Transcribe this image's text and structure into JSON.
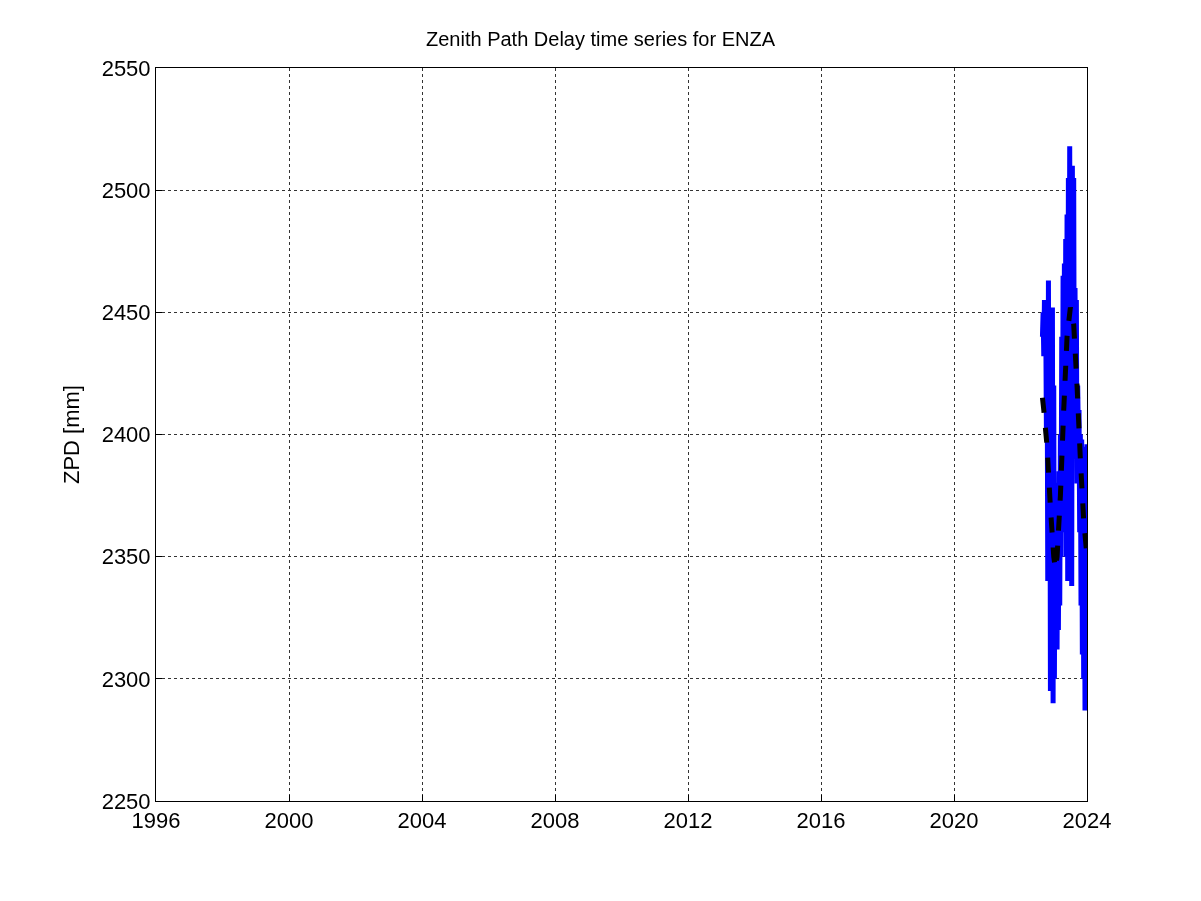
{
  "chart_data": {
    "type": "line",
    "title": "Zenith Path Delay time series for ENZA",
    "ylabel": "ZPD [mm]",
    "series": [
      {
        "color": "#0000ff",
        "line_style": "solid",
        "x": [
          2022.66,
          2022.68,
          2022.7,
          2022.72,
          2022.74,
          2022.76,
          2022.78,
          2022.8,
          2022.82,
          2022.84,
          2022.86,
          2022.88,
          2022.9,
          2022.92,
          2022.94,
          2022.96,
          2022.98,
          2023.0,
          2023.02,
          2023.04,
          2023.06,
          2023.08,
          2023.1,
          2023.12,
          2023.14,
          2023.16,
          2023.18,
          2023.2,
          2023.22,
          2023.24,
          2023.26,
          2023.28,
          2023.3,
          2023.32,
          2023.34,
          2023.36,
          2023.38,
          2023.4,
          2023.42,
          2023.44,
          2023.46,
          2023.48,
          2023.5,
          2023.52,
          2023.54,
          2023.56,
          2023.58,
          2023.6,
          2023.62,
          2023.64,
          2023.66,
          2023.68,
          2023.7,
          2023.72,
          2023.74,
          2023.76,
          2023.78,
          2023.8,
          2023.82,
          2023.84,
          2023.86,
          2023.88,
          2023.9,
          2023.92,
          2023.94,
          2023.96,
          2023.98,
          2024.0
        ],
        "values": [
          2440,
          2450,
          2432,
          2455,
          2436,
          2445,
          2400,
          2440,
          2340,
          2463,
          2365,
          2452,
          2295,
          2440,
          2330,
          2452,
          2290,
          2420,
          2300,
          2380,
          2330,
          2375,
          2312,
          2380,
          2320,
          2385,
          2330,
          2400,
          2350,
          2440,
          2360,
          2465,
          2380,
          2470,
          2390,
          2480,
          2350,
          2490,
          2340,
          2505,
          2400,
          2518,
          2380,
          2500,
          2338,
          2510,
          2400,
          2505,
          2390,
          2460,
          2400,
          2455,
          2380,
          2420,
          2400,
          2410,
          2360,
          2400,
          2330,
          2398,
          2310,
          2395,
          2300,
          2390,
          2287,
          2380,
          2295,
          2396
        ]
      },
      {
        "color": "#000000",
        "line_style": "dashed",
        "x": [
          2022.66,
          2022.7,
          2022.8,
          2022.9,
          2023.0,
          2023.05,
          2023.1,
          2023.2,
          2023.3,
          2023.4,
          2023.5,
          2023.6,
          2023.7,
          2023.8,
          2023.9,
          2024.0
        ],
        "values": [
          2415,
          2410,
          2395,
          2370,
          2350,
          2345,
          2350,
          2375,
          2410,
          2440,
          2452,
          2445,
          2420,
          2390,
          2365,
          2350
        ]
      }
    ],
    "xlim": [
      1996,
      2024
    ],
    "xticks": [
      1996,
      2000,
      2004,
      2008,
      2012,
      2016,
      2020,
      2024
    ],
    "ylim": [
      2250,
      2550
    ],
    "yticks": [
      2250,
      2300,
      2350,
      2400,
      2450,
      2500,
      2550
    ],
    "grid": true,
    "marker": "none"
  }
}
